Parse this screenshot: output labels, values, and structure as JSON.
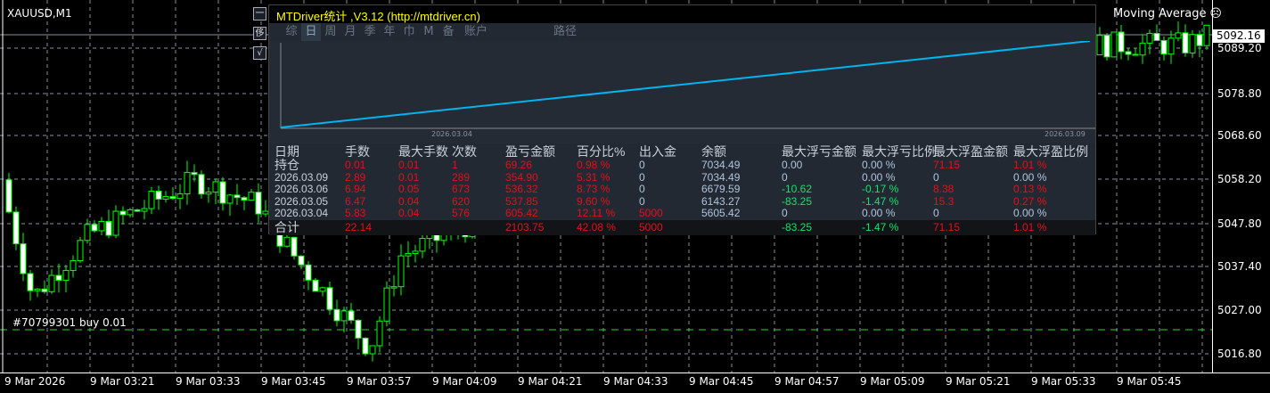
{
  "symbol": "XAUUSD,M1",
  "indicator": {
    "label": "Moving Average",
    "icon": "sad-face-icon"
  },
  "current_price": "5092.16",
  "price_axis": [
    "5089.20",
    "5078.80",
    "5068.60",
    "5058.20",
    "5047.80",
    "5037.40",
    "5027.00",
    "5016.80"
  ],
  "time_axis": [
    "9 Mar 2026",
    "9 Mar 03:21",
    "9 Mar 03:33",
    "9 Mar 03:45",
    "9 Mar 03:57",
    "9 Mar 04:09",
    "9 Mar 04:21",
    "9 Mar 04:33",
    "9 Mar 04:45",
    "9 Mar 04:57",
    "9 Mar 05:09",
    "9 Mar 05:21",
    "9 Mar 05:33",
    "9 Mar 05:45"
  ],
  "order_label": "#70799301 buy 0.01",
  "colors": {
    "bull": "#00ff00",
    "bear": "#ffffff",
    "grid": "#8892a0",
    "equity": "#00b4f0",
    "title": "#ffff00",
    "loss": "#e3101a",
    "profit_green": "#14e36a"
  },
  "side_buttons": [
    "一",
    "侈",
    "√"
  ],
  "panel": {
    "title": "MTDriver统计 ,V3.12 (http://mtdriver.cn)",
    "tabs": [
      "综",
      "日",
      "周",
      "月",
      "季",
      "年",
      "巾",
      "M",
      "备",
      "账户",
      "路径"
    ],
    "active_tab": "日",
    "equity_chart": {
      "x_start": "2026.03.04",
      "x_end": "2026.03.09",
      "start_balance": 5605.42,
      "end_balance": 7034.49
    },
    "headers": [
      "日期",
      "手数",
      "最大手数",
      "次数",
      "盈亏金额",
      "百分比%",
      "出入金",
      "余额",
      "最大浮亏金额",
      "最大浮亏比例",
      "最大浮盈金额",
      "最大浮盈比例"
    ],
    "rows": [
      [
        "持仓",
        "0.01",
        "0.01",
        "1",
        "69.26",
        "0.98 %",
        "0",
        "7034.49",
        "0.00",
        "0.00 %",
        "71.15",
        "1.01 %"
      ],
      [
        "2026.03.09",
        "2.89",
        "0.01",
        "289",
        "354.90",
        "5.31 %",
        "0",
        "7034.49",
        "0",
        "0.00 %",
        "0",
        "0.00 %"
      ],
      [
        "2026.03.06",
        "6.94",
        "0.05",
        "673",
        "536.32",
        "8.73 %",
        "0",
        "6679.59",
        "-10.62",
        "-0.17 %",
        "8.38",
        "0.13 %"
      ],
      [
        "2026.03.05",
        "6.47",
        "0.04",
        "620",
        "537.85",
        "9.60 %",
        "0",
        "6143.27",
        "-83.25",
        "-1.47 %",
        "15.3",
        "0.27 %"
      ],
      [
        "2026.03.04",
        "5.83",
        "0.04",
        "576",
        "605.42",
        "12.11 %",
        "5000",
        "5605.42",
        "0",
        "0.00 %",
        "0",
        "0.00 %"
      ]
    ],
    "total": [
      "合计",
      "22.14",
      "",
      "",
      "2103.75",
      "42.08 %",
      "5000",
      "",
      "-83.25",
      "-1.47 %",
      "71.15",
      "1.01 %"
    ]
  }
}
